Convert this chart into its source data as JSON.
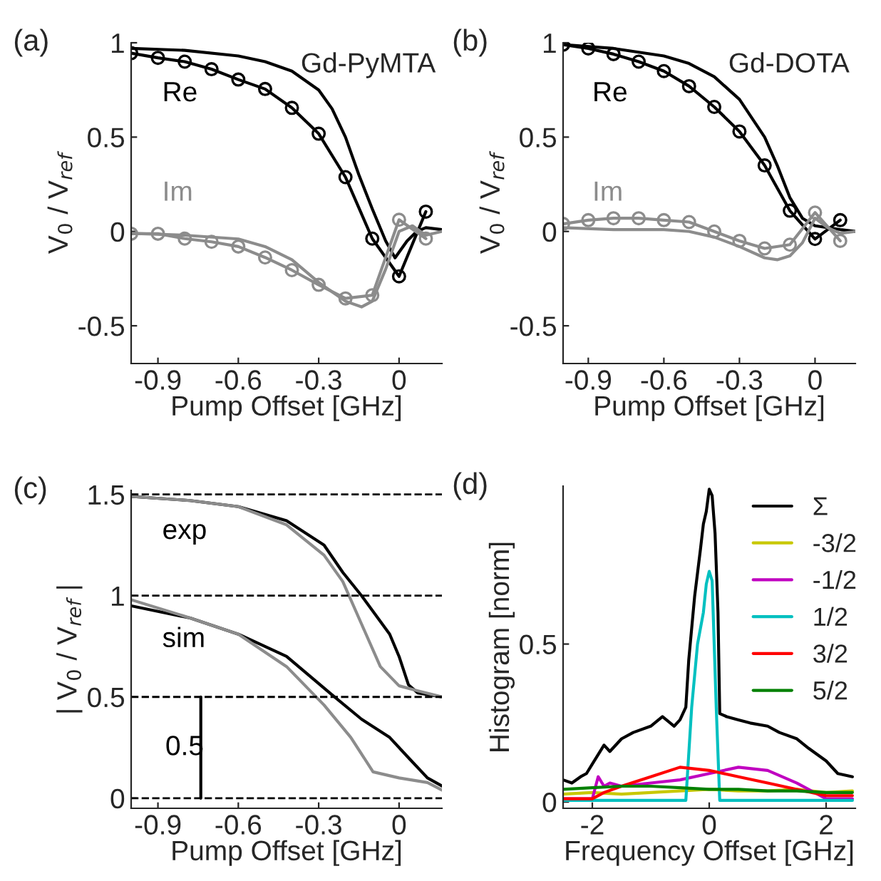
{
  "chart_data": [
    {
      "type": "line",
      "title": "(a)",
      "xlabel": "Pump Offset [GHz]",
      "ylabel": "V$_{0}$ / V$_{ref}$",
      "xlim": [
        -1.0,
        0.16
      ],
      "ylim": [
        -0.7,
        1
      ],
      "xticks": [
        -0.9,
        -0.6,
        -0.3,
        0
      ],
      "yticks": [
        -0.5,
        0,
        0.5,
        1
      ],
      "grid": false,
      "legend": false,
      "annotations": [
        "Gd-PyMTA"
      ],
      "series": [
        {
          "name": "Re",
          "color": "#000000",
          "marker": "none",
          "x": [
            -1.0,
            -0.8,
            -0.6,
            -0.5,
            -0.4,
            -0.3,
            -0.25,
            -0.2,
            -0.15,
            -0.1,
            -0.05,
            -0.015,
            0.03,
            0.066,
            0.1,
            0.16
          ],
          "values": [
            0.97,
            0.96,
            0.93,
            0.9,
            0.85,
            0.75,
            0.65,
            0.5,
            0.3,
            0.12,
            -0.05,
            -0.14,
            -0.05,
            0.0,
            0.02,
            0.01
          ]
        },
        {
          "color": "#000000",
          "marker": "circle",
          "x": [
            -1.0,
            -0.9,
            -0.8,
            -0.7,
            -0.6,
            -0.5,
            -0.4,
            -0.3,
            -0.2,
            -0.1,
            0.0,
            0.1
          ],
          "values": [
            0.945,
            0.92,
            0.9,
            0.86,
            0.805,
            0.755,
            0.655,
            0.518,
            0.288,
            -0.038,
            -0.238,
            0.105
          ]
        },
        {
          "name": "Im",
          "color": "#8c8c8c",
          "marker": "none",
          "x": [
            -1.0,
            -0.8,
            -0.6,
            -0.5,
            -0.4,
            -0.3,
            -0.2,
            -0.14,
            -0.1,
            -0.05,
            0.0,
            0.05,
            0.08,
            0.1,
            0.16
          ],
          "values": [
            -0.01,
            -0.02,
            -0.04,
            -0.08,
            -0.15,
            -0.27,
            -0.37,
            -0.4,
            -0.37,
            -0.2,
            0.0,
            0.03,
            0.0,
            -0.02,
            0.0
          ]
        },
        {
          "color": "#8c8c8c",
          "marker": "circle",
          "x": [
            -1.0,
            -0.9,
            -0.8,
            -0.7,
            -0.6,
            -0.5,
            -0.4,
            -0.3,
            -0.2,
            -0.1,
            0.0,
            0.1
          ],
          "values": [
            -0.012,
            -0.012,
            -0.038,
            -0.055,
            -0.08,
            -0.138,
            -0.205,
            -0.283,
            -0.355,
            -0.338,
            0.062,
            -0.038
          ]
        }
      ]
    },
    {
      "type": "line",
      "title": "(b)",
      "xlabel": "Pump Offset [GHz]",
      "ylabel": "V$_{0}$ / V$_{ref}$",
      "xlim": [
        -1.0,
        0.16
      ],
      "ylim": [
        -0.7,
        1
      ],
      "xticks": [
        -0.9,
        -0.6,
        -0.3,
        0
      ],
      "yticks": [
        -0.5,
        0,
        0.5,
        1
      ],
      "grid": false,
      "legend": false,
      "annotations": [
        "Gd-DOTA"
      ],
      "series": [
        {
          "name": "Re",
          "color": "#000000",
          "marker": "none",
          "x": [
            -1.0,
            -0.8,
            -0.6,
            -0.5,
            -0.4,
            -0.3,
            -0.2,
            -0.15,
            -0.1,
            -0.05,
            0.0,
            0.1,
            0.16
          ],
          "values": [
            0.99,
            0.97,
            0.93,
            0.89,
            0.82,
            0.7,
            0.5,
            0.35,
            0.18,
            0.07,
            0.03,
            0.01,
            0.0
          ]
        },
        {
          "color": "#000000",
          "marker": "circle",
          "x": [
            -1.0,
            -0.9,
            -0.8,
            -0.7,
            -0.6,
            -0.5,
            -0.4,
            -0.3,
            -0.2,
            -0.1,
            0.0,
            0.1
          ],
          "values": [
            0.99,
            0.97,
            0.94,
            0.9,
            0.85,
            0.77,
            0.66,
            0.53,
            0.35,
            0.11,
            -0.04,
            0.06
          ]
        },
        {
          "name": "Im",
          "color": "#8c8c8c",
          "marker": "none",
          "x": [
            -1.0,
            -0.8,
            -0.6,
            -0.5,
            -0.4,
            -0.3,
            -0.2,
            -0.15,
            -0.1,
            -0.05,
            0.0,
            0.05,
            0.1,
            0.16
          ],
          "values": [
            0.02,
            0.01,
            0.01,
            0.0,
            -0.03,
            -0.08,
            -0.14,
            -0.15,
            -0.13,
            -0.06,
            0.07,
            0.02,
            -0.01,
            0.0
          ]
        },
        {
          "color": "#8c8c8c",
          "marker": "circle",
          "x": [
            -1.0,
            -0.9,
            -0.8,
            -0.7,
            -0.6,
            -0.5,
            -0.4,
            -0.3,
            -0.2,
            -0.1,
            0.0,
            0.1
          ],
          "values": [
            0.04,
            0.06,
            0.07,
            0.07,
            0.06,
            0.05,
            0.0,
            -0.05,
            -0.09,
            -0.07,
            0.1,
            -0.05
          ]
        }
      ]
    },
    {
      "type": "line",
      "title": "(c)",
      "xlabel": "Pump Offset [GHz]",
      "ylabel": "| V$_{0}$ / V$_{ref}$ |",
      "xlim": [
        -1.0,
        0.16
      ],
      "ylim": [
        -0.05,
        1.52
      ],
      "xticks": [
        -0.9,
        -0.6,
        -0.3,
        0
      ],
      "yticks": [
        0,
        0.5,
        1,
        1.5
      ],
      "grid": false,
      "legend": false,
      "ref_lines": [
        {
          "axis": "y",
          "value": 0,
          "color": "#000000",
          "line_style": "dashed"
        },
        {
          "axis": "y",
          "value": 0.5,
          "color": "#000000",
          "line_style": "dashed"
        },
        {
          "axis": "y",
          "value": 1,
          "color": "#000000",
          "line_style": "dashed"
        },
        {
          "axis": "y",
          "value": 1.5,
          "color": "#000000",
          "line_style": "dashed"
        }
      ],
      "series": [
        {
          "name": "exp",
          "color": "#000000",
          "marker": "none",
          "x": [
            -1.0,
            -0.78,
            -0.6,
            -0.42,
            -0.28,
            -0.21,
            -0.14,
            -0.035,
            0.0,
            0.035,
            0.07,
            0.16
          ],
          "values": [
            1.49,
            1.47,
            1.44,
            1.37,
            1.25,
            1.115,
            1.0,
            0.81,
            0.7,
            0.56,
            0.52,
            0.5
          ]
        },
        {
          "color": "#8c8c8c",
          "marker": "none",
          "x": [
            -1.0,
            -0.78,
            -0.6,
            -0.42,
            -0.28,
            -0.21,
            -0.14,
            -0.07,
            0.0,
            0.07,
            0.16
          ],
          "values": [
            1.49,
            1.47,
            1.44,
            1.35,
            1.2,
            1.07,
            0.86,
            0.65,
            0.555,
            0.53,
            0.5
          ]
        },
        {
          "name": "sim",
          "color": "#000000",
          "marker": "none",
          "x": [
            -1.0,
            -0.78,
            -0.6,
            -0.42,
            -0.25,
            -0.14,
            -0.035,
            0.035,
            0.106,
            0.16
          ],
          "values": [
            0.95,
            0.89,
            0.81,
            0.7,
            0.51,
            0.39,
            0.3,
            0.2,
            0.1,
            0.06
          ]
        },
        {
          "color": "#8c8c8c",
          "marker": "none",
          "x": [
            -1.0,
            -0.78,
            -0.6,
            -0.42,
            -0.28,
            -0.18,
            -0.097,
            0.0,
            0.106,
            0.16
          ],
          "values": [
            0.98,
            0.89,
            0.81,
            0.65,
            0.46,
            0.3,
            0.13,
            0.1,
            0.077,
            0.04
          ]
        },
        {
          "name": "0.5",
          "color": "#000000",
          "marker": "none",
          "x": [
            -0.74,
            -0.74
          ],
          "values": [
            0,
            0.5
          ]
        }
      ]
    },
    {
      "type": "line",
      "title": "(d)",
      "xlabel": "Frequency Offset [GHz]",
      "ylabel": "Histogram [norm]",
      "xlim": [
        -2.5,
        2.5
      ],
      "ylim": [
        -0.02,
        1.0
      ],
      "xticks": [
        -2,
        0,
        2
      ],
      "yticks": [
        0,
        0.5
      ],
      "grid": false,
      "legend": "top right",
      "series": [
        {
          "name": "Σ",
          "color": "#000000",
          "marker": "none",
          "x": [
            -2.5,
            -2.35,
            -2.2,
            -2.1,
            -2.0,
            -1.9,
            -1.8,
            -1.7,
            -1.5,
            -1.3,
            -1.0,
            -0.8,
            -0.6,
            -0.5,
            -0.4,
            -0.35,
            -0.25,
            -0.15,
            -0.1,
            -0.05,
            0.0,
            0.05,
            0.1,
            0.15,
            0.18,
            0.3,
            0.5,
            0.7,
            1.0,
            1.2,
            1.5,
            1.7,
            2.0,
            2.2,
            2.45
          ],
          "values": [
            0.07,
            0.06,
            0.08,
            0.09,
            0.12,
            0.15,
            0.18,
            0.16,
            0.2,
            0.22,
            0.24,
            0.27,
            0.24,
            0.26,
            0.3,
            0.45,
            0.65,
            0.8,
            0.88,
            0.92,
            0.99,
            0.97,
            0.85,
            0.6,
            0.28,
            0.27,
            0.26,
            0.25,
            0.24,
            0.22,
            0.2,
            0.17,
            0.13,
            0.09,
            0.08
          ]
        },
        {
          "name": "-3/2",
          "color": "#c8c800",
          "marker": "none",
          "x": [
            -2.5,
            -2.0,
            -1.5,
            -1.0,
            -0.5,
            0.0,
            0.5,
            1.0,
            1.5,
            2.0,
            2.45
          ],
          "values": [
            0.025,
            0.03,
            0.025,
            0.03,
            0.035,
            0.04,
            0.035,
            0.035,
            0.04,
            0.03,
            0.035
          ]
        },
        {
          "name": "-1/2",
          "color": "#c000c0",
          "marker": "none",
          "x": [
            -2.5,
            -2.0,
            -1.9,
            -1.8,
            -1.7,
            -1.5,
            -1.0,
            -0.5,
            0.0,
            0.5,
            1.0,
            1.5,
            1.9,
            2.0,
            2.45
          ],
          "values": [
            0.01,
            0.01,
            0.08,
            0.05,
            0.06,
            0.05,
            0.06,
            0.07,
            0.09,
            0.11,
            0.1,
            0.06,
            0.02,
            0.01,
            0.01
          ]
        },
        {
          "name": "1/2",
          "color": "#00c0c0",
          "marker": "none",
          "x": [
            -2.5,
            -0.4,
            -0.3,
            -0.2,
            -0.1,
            -0.05,
            0.0,
            0.05,
            0.12,
            0.18,
            2.45
          ],
          "values": [
            0.005,
            0.005,
            0.3,
            0.5,
            0.6,
            0.69,
            0.73,
            0.7,
            0.3,
            0.005,
            0.005
          ]
        },
        {
          "name": "3/2",
          "color": "#ff0000",
          "marker": "none",
          "x": [
            -2.5,
            -2.0,
            -1.8,
            -1.5,
            -1.0,
            -0.5,
            0.0,
            0.5,
            1.0,
            1.5,
            2.0,
            2.45
          ],
          "values": [
            0.01,
            0.01,
            0.03,
            0.05,
            0.08,
            0.11,
            0.1,
            0.08,
            0.06,
            0.04,
            0.02,
            0.02
          ]
        },
        {
          "name": "5/2",
          "color": "#008000",
          "marker": "none",
          "x": [
            -2.5,
            -2.0,
            -1.5,
            -1.0,
            -0.5,
            0.0,
            0.5,
            1.0,
            1.5,
            2.0,
            2.45
          ],
          "values": [
            0.04,
            0.045,
            0.05,
            0.05,
            0.045,
            0.04,
            0.04,
            0.035,
            0.035,
            0.03,
            0.03
          ]
        }
      ]
    }
  ]
}
